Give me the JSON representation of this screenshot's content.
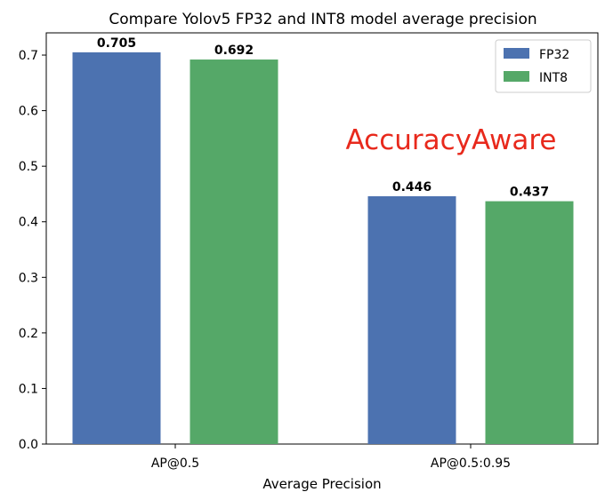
{
  "chart_data": {
    "type": "bar",
    "title": "Compare Yolov5 FP32 and INT8 model average precision",
    "xlabel": "Average Precision",
    "ylabel": "",
    "categories": [
      "AP@0.5",
      "AP@0.5:0.95"
    ],
    "series": [
      {
        "name": "FP32",
        "values": [
          0.705,
          0.446
        ],
        "value_labels": [
          "0.705",
          "0.446"
        ],
        "color": "#4c72b0"
      },
      {
        "name": "INT8",
        "values": [
          0.692,
          0.437
        ],
        "value_labels": [
          "0.692",
          "0.437"
        ],
        "color": "#55a868"
      }
    ],
    "ylim": [
      0,
      0.74
    ],
    "yticks": [
      0.0,
      0.1,
      0.2,
      0.3,
      0.4,
      0.5,
      0.6,
      0.7
    ],
    "ytick_labels": [
      "0.0",
      "0.1",
      "0.2",
      "0.3",
      "0.4",
      "0.5",
      "0.6",
      "0.7"
    ],
    "grid": false,
    "legend_position": "top-right",
    "annotation": "AccuracyAware",
    "annotation_color": "#e8291c"
  }
}
